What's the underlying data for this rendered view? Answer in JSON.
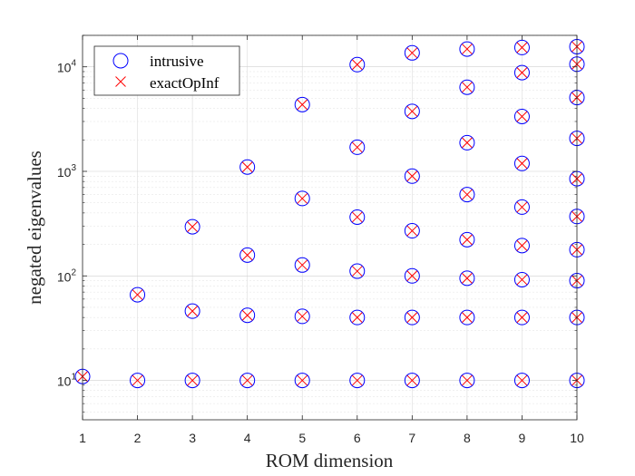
{
  "chart_data": {
    "type": "scatter",
    "xlabel": "ROM dimension",
    "ylabel": "negated eigenvalues",
    "xlim": [
      1,
      10
    ],
    "ylim": [
      4.2,
      20000
    ],
    "yscale": "log",
    "x_ticks": [
      1,
      2,
      3,
      4,
      5,
      6,
      7,
      8,
      9,
      10
    ],
    "y_ticks": [
      {
        "value": 10,
        "base": "10",
        "exp": "1"
      },
      {
        "value": 100,
        "base": "10",
        "exp": "2"
      },
      {
        "value": 1000,
        "base": "10",
        "exp": "3"
      },
      {
        "value": 10000,
        "base": "10",
        "exp": "4"
      }
    ],
    "grid": true,
    "legend_position": "top-left",
    "series": [
      {
        "name": "intrusive",
        "marker": "circle",
        "color": "#0000ff",
        "points": [
          [
            1,
            10.9
          ],
          [
            2,
            10
          ],
          [
            2,
            66
          ],
          [
            3,
            10
          ],
          [
            3,
            46
          ],
          [
            3,
            295
          ],
          [
            4,
            10
          ],
          [
            4,
            42
          ],
          [
            4,
            158
          ],
          [
            4,
            1100
          ],
          [
            5,
            10
          ],
          [
            5,
            41
          ],
          [
            5,
            127
          ],
          [
            5,
            550
          ],
          [
            5,
            4350
          ],
          [
            6,
            10
          ],
          [
            6,
            40
          ],
          [
            6,
            111
          ],
          [
            6,
            365
          ],
          [
            6,
            1700
          ],
          [
            6,
            10500
          ],
          [
            7,
            10
          ],
          [
            7,
            40
          ],
          [
            7,
            100
          ],
          [
            7,
            270
          ],
          [
            7,
            900
          ],
          [
            7,
            3750
          ],
          [
            7,
            13600
          ],
          [
            8,
            10
          ],
          [
            8,
            40
          ],
          [
            8,
            95
          ],
          [
            8,
            222
          ],
          [
            8,
            600
          ],
          [
            8,
            1880
          ],
          [
            8,
            6380
          ],
          [
            8,
            14800
          ],
          [
            9,
            10
          ],
          [
            9,
            40
          ],
          [
            9,
            92
          ],
          [
            9,
            195
          ],
          [
            9,
            455
          ],
          [
            9,
            1190
          ],
          [
            9,
            3350
          ],
          [
            9,
            8800
          ],
          [
            9,
            15300
          ],
          [
            10,
            10
          ],
          [
            10,
            40
          ],
          [
            10,
            90
          ],
          [
            10,
            178
          ],
          [
            10,
            370
          ],
          [
            10,
            850
          ],
          [
            10,
            2070
          ],
          [
            10,
            5080
          ],
          [
            10,
            10600
          ],
          [
            10,
            15600
          ]
        ]
      },
      {
        "name": "exactOpInf",
        "marker": "x",
        "color": "#ff0000",
        "points": [
          [
            1,
            10.9
          ],
          [
            2,
            10
          ],
          [
            2,
            66
          ],
          [
            3,
            10
          ],
          [
            3,
            46
          ],
          [
            3,
            295
          ],
          [
            4,
            10
          ],
          [
            4,
            42
          ],
          [
            4,
            158
          ],
          [
            4,
            1100
          ],
          [
            5,
            10
          ],
          [
            5,
            41
          ],
          [
            5,
            127
          ],
          [
            5,
            550
          ],
          [
            5,
            4350
          ],
          [
            6,
            10
          ],
          [
            6,
            40
          ],
          [
            6,
            111
          ],
          [
            6,
            365
          ],
          [
            6,
            1700
          ],
          [
            6,
            10500
          ],
          [
            7,
            10
          ],
          [
            7,
            40
          ],
          [
            7,
            100
          ],
          [
            7,
            270
          ],
          [
            7,
            900
          ],
          [
            7,
            3750
          ],
          [
            7,
            13600
          ],
          [
            8,
            10
          ],
          [
            8,
            40
          ],
          [
            8,
            95
          ],
          [
            8,
            222
          ],
          [
            8,
            600
          ],
          [
            8,
            1880
          ],
          [
            8,
            6380
          ],
          [
            8,
            14800
          ],
          [
            9,
            10
          ],
          [
            9,
            40
          ],
          [
            9,
            92
          ],
          [
            9,
            195
          ],
          [
            9,
            455
          ],
          [
            9,
            1190
          ],
          [
            9,
            3350
          ],
          [
            9,
            8800
          ],
          [
            9,
            15300
          ],
          [
            10,
            10
          ],
          [
            10,
            40
          ],
          [
            10,
            90
          ],
          [
            10,
            178
          ],
          [
            10,
            370
          ],
          [
            10,
            850
          ],
          [
            10,
            2070
          ],
          [
            10,
            5080
          ],
          [
            10,
            10600
          ],
          [
            10,
            15600
          ]
        ]
      }
    ]
  }
}
